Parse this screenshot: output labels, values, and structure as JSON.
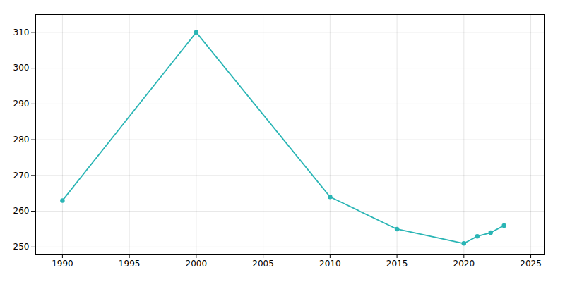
{
  "chart_data": {
    "type": "line",
    "x": [
      1990,
      2000,
      2010,
      2015,
      2020,
      2021,
      2022,
      2023
    ],
    "values": [
      263,
      310,
      264,
      255,
      251,
      253,
      254,
      256
    ],
    "color": "#2ab5b5",
    "marker": "circle",
    "xlim": [
      1988,
      2026
    ],
    "ylim": [
      248,
      315
    ],
    "xticks": [
      1990,
      1995,
      2000,
      2005,
      2010,
      2015,
      2020,
      2025
    ],
    "yticks": [
      250,
      260,
      270,
      280,
      290,
      300,
      310
    ],
    "grid": true
  }
}
